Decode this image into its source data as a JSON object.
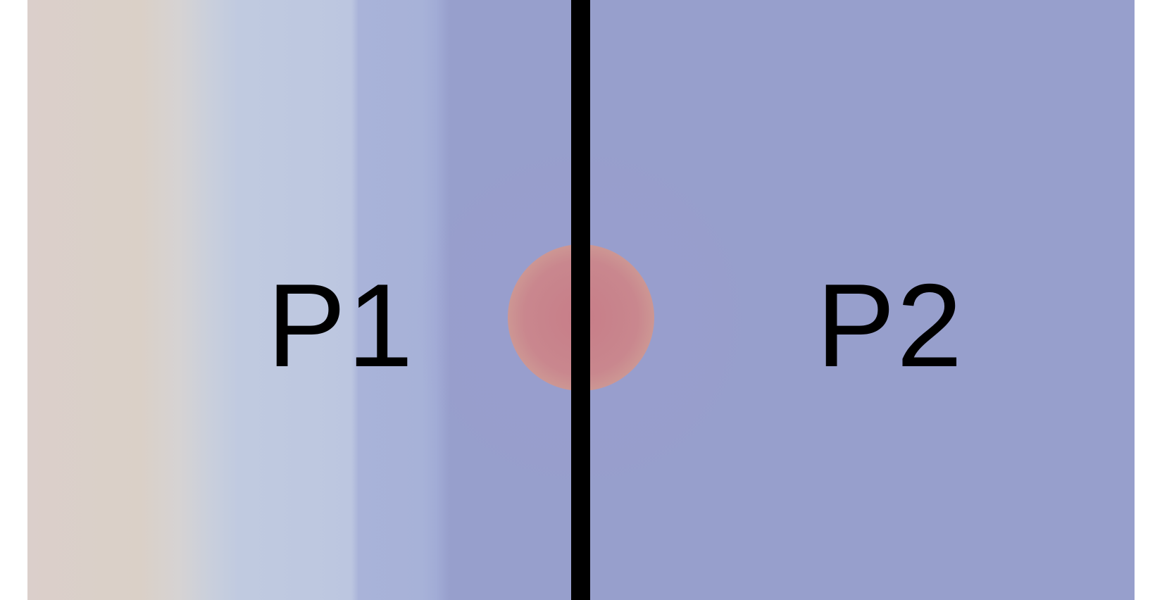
{
  "diagram": {
    "left_region_label": "P1",
    "right_region_label": "P2",
    "colors": {
      "background": "#ffffff",
      "field_left": "#dbcfcb",
      "field_right": "#979fcc",
      "particle_core": "#c77d88",
      "divider": "#000000",
      "label_text": "#000000"
    },
    "elements": {
      "particle": "particle-at-interface",
      "divider": "vertical-interface-line"
    }
  }
}
